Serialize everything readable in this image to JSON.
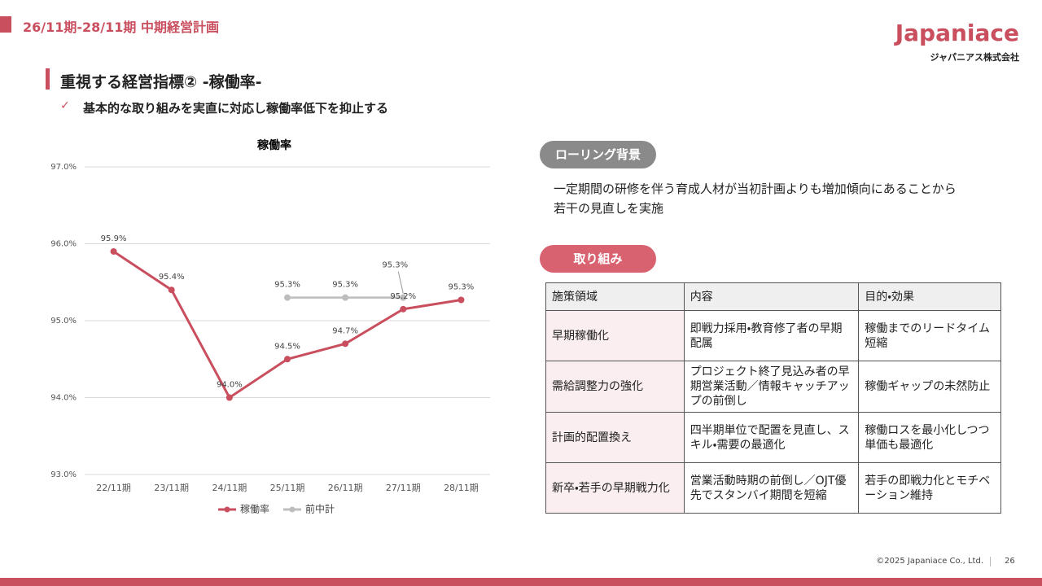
{
  "header": {
    "title": "26/11期-28/11期 中期経営計画",
    "logo": "Japaniace",
    "company": "ジャパニアス株式会社"
  },
  "heading": "重視する経営指標②  -稼働率-",
  "bullet": "基本的な取り組みを実直に対応し稼働率低下を抑止する",
  "chart_data": {
    "type": "line",
    "title": "稼働率",
    "categories": [
      "22/11期",
      "23/11期",
      "24/11期",
      "25/11期",
      "26/11期",
      "27/11期",
      "28/11期"
    ],
    "series": [
      {
        "name": "稼働率",
        "color": "#c94f5f",
        "values": [
          95.9,
          95.4,
          94.0,
          94.5,
          94.7,
          95.15,
          95.27
        ],
        "value_labels": [
          "95.9%",
          "95.4%",
          "94.0%",
          "94.5%",
          "94.7%",
          "95.2%",
          "95.3%"
        ]
      },
      {
        "name": "前中計",
        "color": "#bdbdbd",
        "values": [
          null,
          null,
          null,
          95.3,
          95.3,
          95.3,
          null
        ],
        "value_labels": [
          null,
          null,
          null,
          "95.3%",
          "95.3%",
          "95.3%",
          null
        ]
      }
    ],
    "ylim": [
      93,
      97
    ],
    "yticks": [
      {
        "value": 93,
        "label": "93.0%"
      },
      {
        "value": 94,
        "label": "94.0%"
      },
      {
        "value": 95,
        "label": "95.0%"
      },
      {
        "value": 96,
        "label": "96.0%"
      },
      {
        "value": 97,
        "label": "97.0%"
      }
    ],
    "grid": true,
    "legend": "bottom"
  },
  "background": {
    "label": "ローリング背景",
    "lines": [
      "一定期間の研修を伴う育成人材が当初計画よりも増加傾向にあることから",
      "若干の見直しを実施"
    ]
  },
  "actions": {
    "label": "取り組み",
    "table": {
      "header": [
        "施策領域",
        "内容",
        "目的・効果"
      ],
      "rows": [
        [
          "早期稼働化",
          "即戦力採用・教育修了者の早期配属",
          "稼働までのリードタイム短縮"
        ],
        [
          "需給調整力の強化",
          "プロジェクト終了見込み者の早期営業活動／情報キャッチアップの前倒し",
          "稼働ギャップの未然防止"
        ],
        [
          "計画的配置換え",
          "四半期単位で配置を見直し、スキル・需要の最適化",
          "稼働ロスを最小化しつつ単価も最適化"
        ],
        [
          "新卒・若手の早期戦力化",
          "営業活動時期の前倒し／OJT優先でスタンバイ期間を短縮",
          "若手の即戦力化とモチベーション維持"
        ]
      ]
    }
  },
  "footer": {
    "copyright": "©2025 Japaniace Co., Ltd.",
    "page": "26"
  }
}
